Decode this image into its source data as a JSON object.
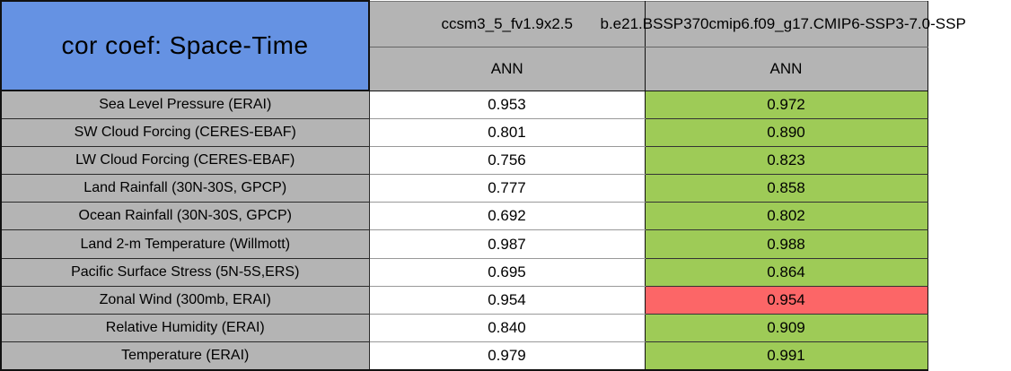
{
  "title": "cor coef: Space-Time",
  "header": {
    "case1": "ccsm3_5_fv1.9x2.5",
    "case2": "b.e21.BSSP370cmip6.f09_g17.CMIP6-SSP3-7.0-SSP",
    "season1": "ANN",
    "season2": "ANN"
  },
  "colors": {
    "blue": "#6592e3",
    "gray": "#b4b4b4",
    "green": "#9ecb57",
    "red": "#fc6667",
    "white": "#ffffff"
  },
  "rows": [
    {
      "label": "Sea Level Pressure (ERAI)",
      "case1": "0.953",
      "case2": "0.972",
      "case2_color": "green"
    },
    {
      "label": "SW Cloud Forcing (CERES-EBAF)",
      "case1": "0.801",
      "case2": "0.890",
      "case2_color": "green"
    },
    {
      "label": "LW Cloud Forcing (CERES-EBAF)",
      "case1": "0.756",
      "case2": "0.823",
      "case2_color": "green"
    },
    {
      "label": "Land Rainfall (30N-30S, GPCP)",
      "case1": "0.777",
      "case2": "0.858",
      "case2_color": "green"
    },
    {
      "label": "Ocean Rainfall (30N-30S, GPCP)",
      "case1": "0.692",
      "case2": "0.802",
      "case2_color": "green"
    },
    {
      "label": "Land 2-m Temperature (Willmott)",
      "case1": "0.987",
      "case2": "0.988",
      "case2_color": "green"
    },
    {
      "label": "Pacific Surface Stress (5N-5S,ERS)",
      "case1": "0.695",
      "case2": "0.864",
      "case2_color": "green"
    },
    {
      "label": "Zonal Wind (300mb, ERAI)",
      "case1": "0.954",
      "case2": "0.954",
      "case2_color": "red"
    },
    {
      "label": "Relative Humidity (ERAI)",
      "case1": "0.840",
      "case2": "0.909",
      "case2_color": "green"
    },
    {
      "label": "Temperature (ERAI)",
      "case1": "0.979",
      "case2": "0.991",
      "case2_color": "green"
    }
  ],
  "chart_data": {
    "type": "table",
    "title": "cor coef: Space-Time",
    "columns": [
      "ccsm3_5_fv1.9x2.5",
      "b.e21.BSSP370cmip6.f09_g17.CMIP6-SSP3-7.0-SSP"
    ],
    "season": "ANN",
    "rows": [
      {
        "variable": "Sea Level Pressure (ERAI)",
        "case1": 0.953,
        "case2": 0.972,
        "case2_highlight": "green"
      },
      {
        "variable": "SW Cloud Forcing (CERES-EBAF)",
        "case1": 0.801,
        "case2": 0.89,
        "case2_highlight": "green"
      },
      {
        "variable": "LW Cloud Forcing (CERES-EBAF)",
        "case1": 0.756,
        "case2": 0.823,
        "case2_highlight": "green"
      },
      {
        "variable": "Land Rainfall (30N-30S, GPCP)",
        "case1": 0.777,
        "case2": 0.858,
        "case2_highlight": "green"
      },
      {
        "variable": "Ocean Rainfall (30N-30S, GPCP)",
        "case1": 0.692,
        "case2": 0.802,
        "case2_highlight": "green"
      },
      {
        "variable": "Land 2-m Temperature (Willmott)",
        "case1": 0.987,
        "case2": 0.988,
        "case2_highlight": "green"
      },
      {
        "variable": "Pacific Surface Stress (5N-5S,ERS)",
        "case1": 0.695,
        "case2": 0.864,
        "case2_highlight": "green"
      },
      {
        "variable": "Zonal Wind (300mb, ERAI)",
        "case1": 0.954,
        "case2": 0.954,
        "case2_highlight": "red"
      },
      {
        "variable": "Relative Humidity (ERAI)",
        "case1": 0.84,
        "case2": 0.909,
        "case2_highlight": "green"
      },
      {
        "variable": "Temperature (ERAI)",
        "case1": 0.979,
        "case2": 0.991,
        "case2_highlight": "green"
      }
    ]
  }
}
